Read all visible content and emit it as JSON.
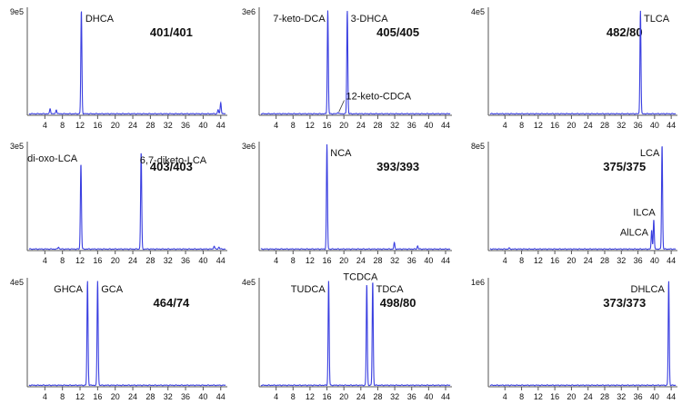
{
  "chart_data": [
    {
      "type": "line",
      "ymax_label": "9e5",
      "transition": "401/401",
      "peaks": [
        {
          "x": 12.3,
          "y": 1.0,
          "label": "DHCA",
          "lx": 13.2,
          "ly": 0.93,
          "anchor": "start"
        },
        {
          "x": 5.2,
          "y": 0.05
        },
        {
          "x": 6.6,
          "y": 0.04
        },
        {
          "x": 43.4,
          "y": 0.04
        },
        {
          "x": 44.0,
          "y": 0.11
        }
      ],
      "xticks": [
        4,
        8,
        12,
        16,
        20,
        24,
        28,
        32,
        36,
        40,
        44
      ],
      "xlim": [
        0,
        45.5
      ]
    },
    {
      "type": "line",
      "ymax_label": "3e6",
      "transition": "405/405",
      "peaks": [
        {
          "x": 16.2,
          "y": 1.0,
          "label": "7-keto-DCA",
          "lx": 15.6,
          "ly": 0.93,
          "anchor": "end"
        },
        {
          "x": 20.8,
          "y": 1.0,
          "label": "3-DHCA",
          "lx": 21.6,
          "ly": 0.93,
          "anchor": "start"
        },
        {
          "x": 18.6,
          "y": 0.015,
          "label": "12-keto-CDCA",
          "lx": 20.5,
          "ly": 0.18,
          "anchor": "start",
          "leader": true
        }
      ],
      "xticks": [
        4,
        8,
        12,
        16,
        20,
        24,
        28,
        32,
        36,
        40,
        44
      ],
      "xlim": [
        0,
        45.5
      ]
    },
    {
      "type": "line",
      "ymax_label": "4e5",
      "transition": "482/80",
      "peaks": [
        {
          "x": 36.6,
          "y": 1.0,
          "label": "TLCA",
          "lx": 37.4,
          "ly": 0.93,
          "anchor": "start"
        }
      ],
      "xticks": [
        4,
        8,
        12,
        16,
        20,
        24,
        28,
        32,
        36,
        40,
        44
      ],
      "xlim": [
        0,
        45.5
      ]
    },
    {
      "type": "line",
      "ymax_label": "3e5",
      "transition": "403/403",
      "peaks": [
        {
          "x": 12.2,
          "y": 0.82,
          "label": "di-oxo-LCA",
          "lx": 11.4,
          "ly": 0.88,
          "anchor": "end"
        },
        {
          "x": 25.9,
          "y": 0.93,
          "label": "6,7-diketo-LCA",
          "lx": 25.6,
          "ly": 0.86,
          "anchor": "start"
        },
        {
          "x": 7.1,
          "y": 0.02
        },
        {
          "x": 42.5,
          "y": 0.03
        },
        {
          "x": 43.6,
          "y": 0.02
        }
      ],
      "xticks": [
        4,
        8,
        12,
        16,
        20,
        24,
        28,
        32,
        36,
        40,
        44
      ],
      "xlim": [
        0,
        45.5
      ]
    },
    {
      "type": "line",
      "ymax_label": "3e6",
      "transition": "393/393",
      "peaks": [
        {
          "x": 16.0,
          "y": 1.0,
          "label": "NCA",
          "lx": 16.8,
          "ly": 0.93,
          "anchor": "start"
        },
        {
          "x": 31.9,
          "y": 0.06
        },
        {
          "x": 37.4,
          "y": 0.03
        }
      ],
      "xticks": [
        4,
        8,
        12,
        16,
        20,
        24,
        28,
        32,
        36,
        40,
        44
      ],
      "xlim": [
        0,
        45.5
      ]
    },
    {
      "type": "line",
      "ymax_label": "8e5",
      "transition": "375/375",
      "peaks": [
        {
          "x": 41.8,
          "y": 1.0,
          "label": "LCA",
          "lx": 41.2,
          "ly": 0.93,
          "anchor": "end"
        },
        {
          "x": 39.8,
          "y": 0.28,
          "label": "ILCA",
          "lx": 40.2,
          "ly": 0.36,
          "anchor": "end"
        },
        {
          "x": 39.3,
          "y": 0.18,
          "label": "AlLCA",
          "lx": 38.5,
          "ly": 0.17,
          "anchor": "end"
        },
        {
          "x": 5.0,
          "y": 0.01
        }
      ],
      "xticks": [
        4,
        8,
        12,
        16,
        20,
        24,
        28,
        32,
        36,
        40,
        44
      ],
      "xlim": [
        0,
        45.5
      ]
    },
    {
      "type": "line",
      "ymax_label": "4e5",
      "transition": "464/74",
      "peaks": [
        {
          "x": 13.7,
          "y": 1.0,
          "label": "GHCA",
          "lx": 12.6,
          "ly": 0.93,
          "anchor": "end"
        },
        {
          "x": 16.0,
          "y": 1.0,
          "label": "GCA",
          "lx": 16.8,
          "ly": 0.93,
          "anchor": "start"
        }
      ],
      "xticks": [
        4,
        8,
        12,
        16,
        20,
        24,
        28,
        32,
        36,
        40,
        44
      ],
      "xlim": [
        0,
        45.5
      ]
    },
    {
      "type": "line",
      "ymax_label": "4e5",
      "transition": "498/80",
      "peaks": [
        {
          "x": 16.4,
          "y": 1.0,
          "label": "TUDCA",
          "lx": 15.6,
          "ly": 0.93,
          "anchor": "end"
        },
        {
          "x": 25.4,
          "y": 0.97,
          "label": "TCDCA",
          "lx": 23.9,
          "ly": 1.05,
          "anchor": "middle"
        },
        {
          "x": 26.8,
          "y": 1.0,
          "label": "TDCA",
          "lx": 27.6,
          "ly": 0.93,
          "anchor": "start"
        }
      ],
      "xticks": [
        4,
        8,
        12,
        16,
        20,
        24,
        28,
        32,
        36,
        40,
        44
      ],
      "xlim": [
        0,
        45.5
      ]
    },
    {
      "type": "line",
      "ymax_label": "1e6",
      "transition": "373/373",
      "peaks": [
        {
          "x": 43.4,
          "y": 1.0,
          "label": "DHLCA",
          "lx": 42.4,
          "ly": 0.93,
          "anchor": "end"
        }
      ],
      "xticks": [
        4,
        8,
        12,
        16,
        20,
        24,
        28,
        32,
        36,
        40,
        44
      ],
      "xlim": [
        0,
        45.5
      ]
    }
  ],
  "colors": {
    "trace": "#3a3fe0",
    "axis": "#555555",
    "text": "#111111",
    "leader": "#333333"
  }
}
